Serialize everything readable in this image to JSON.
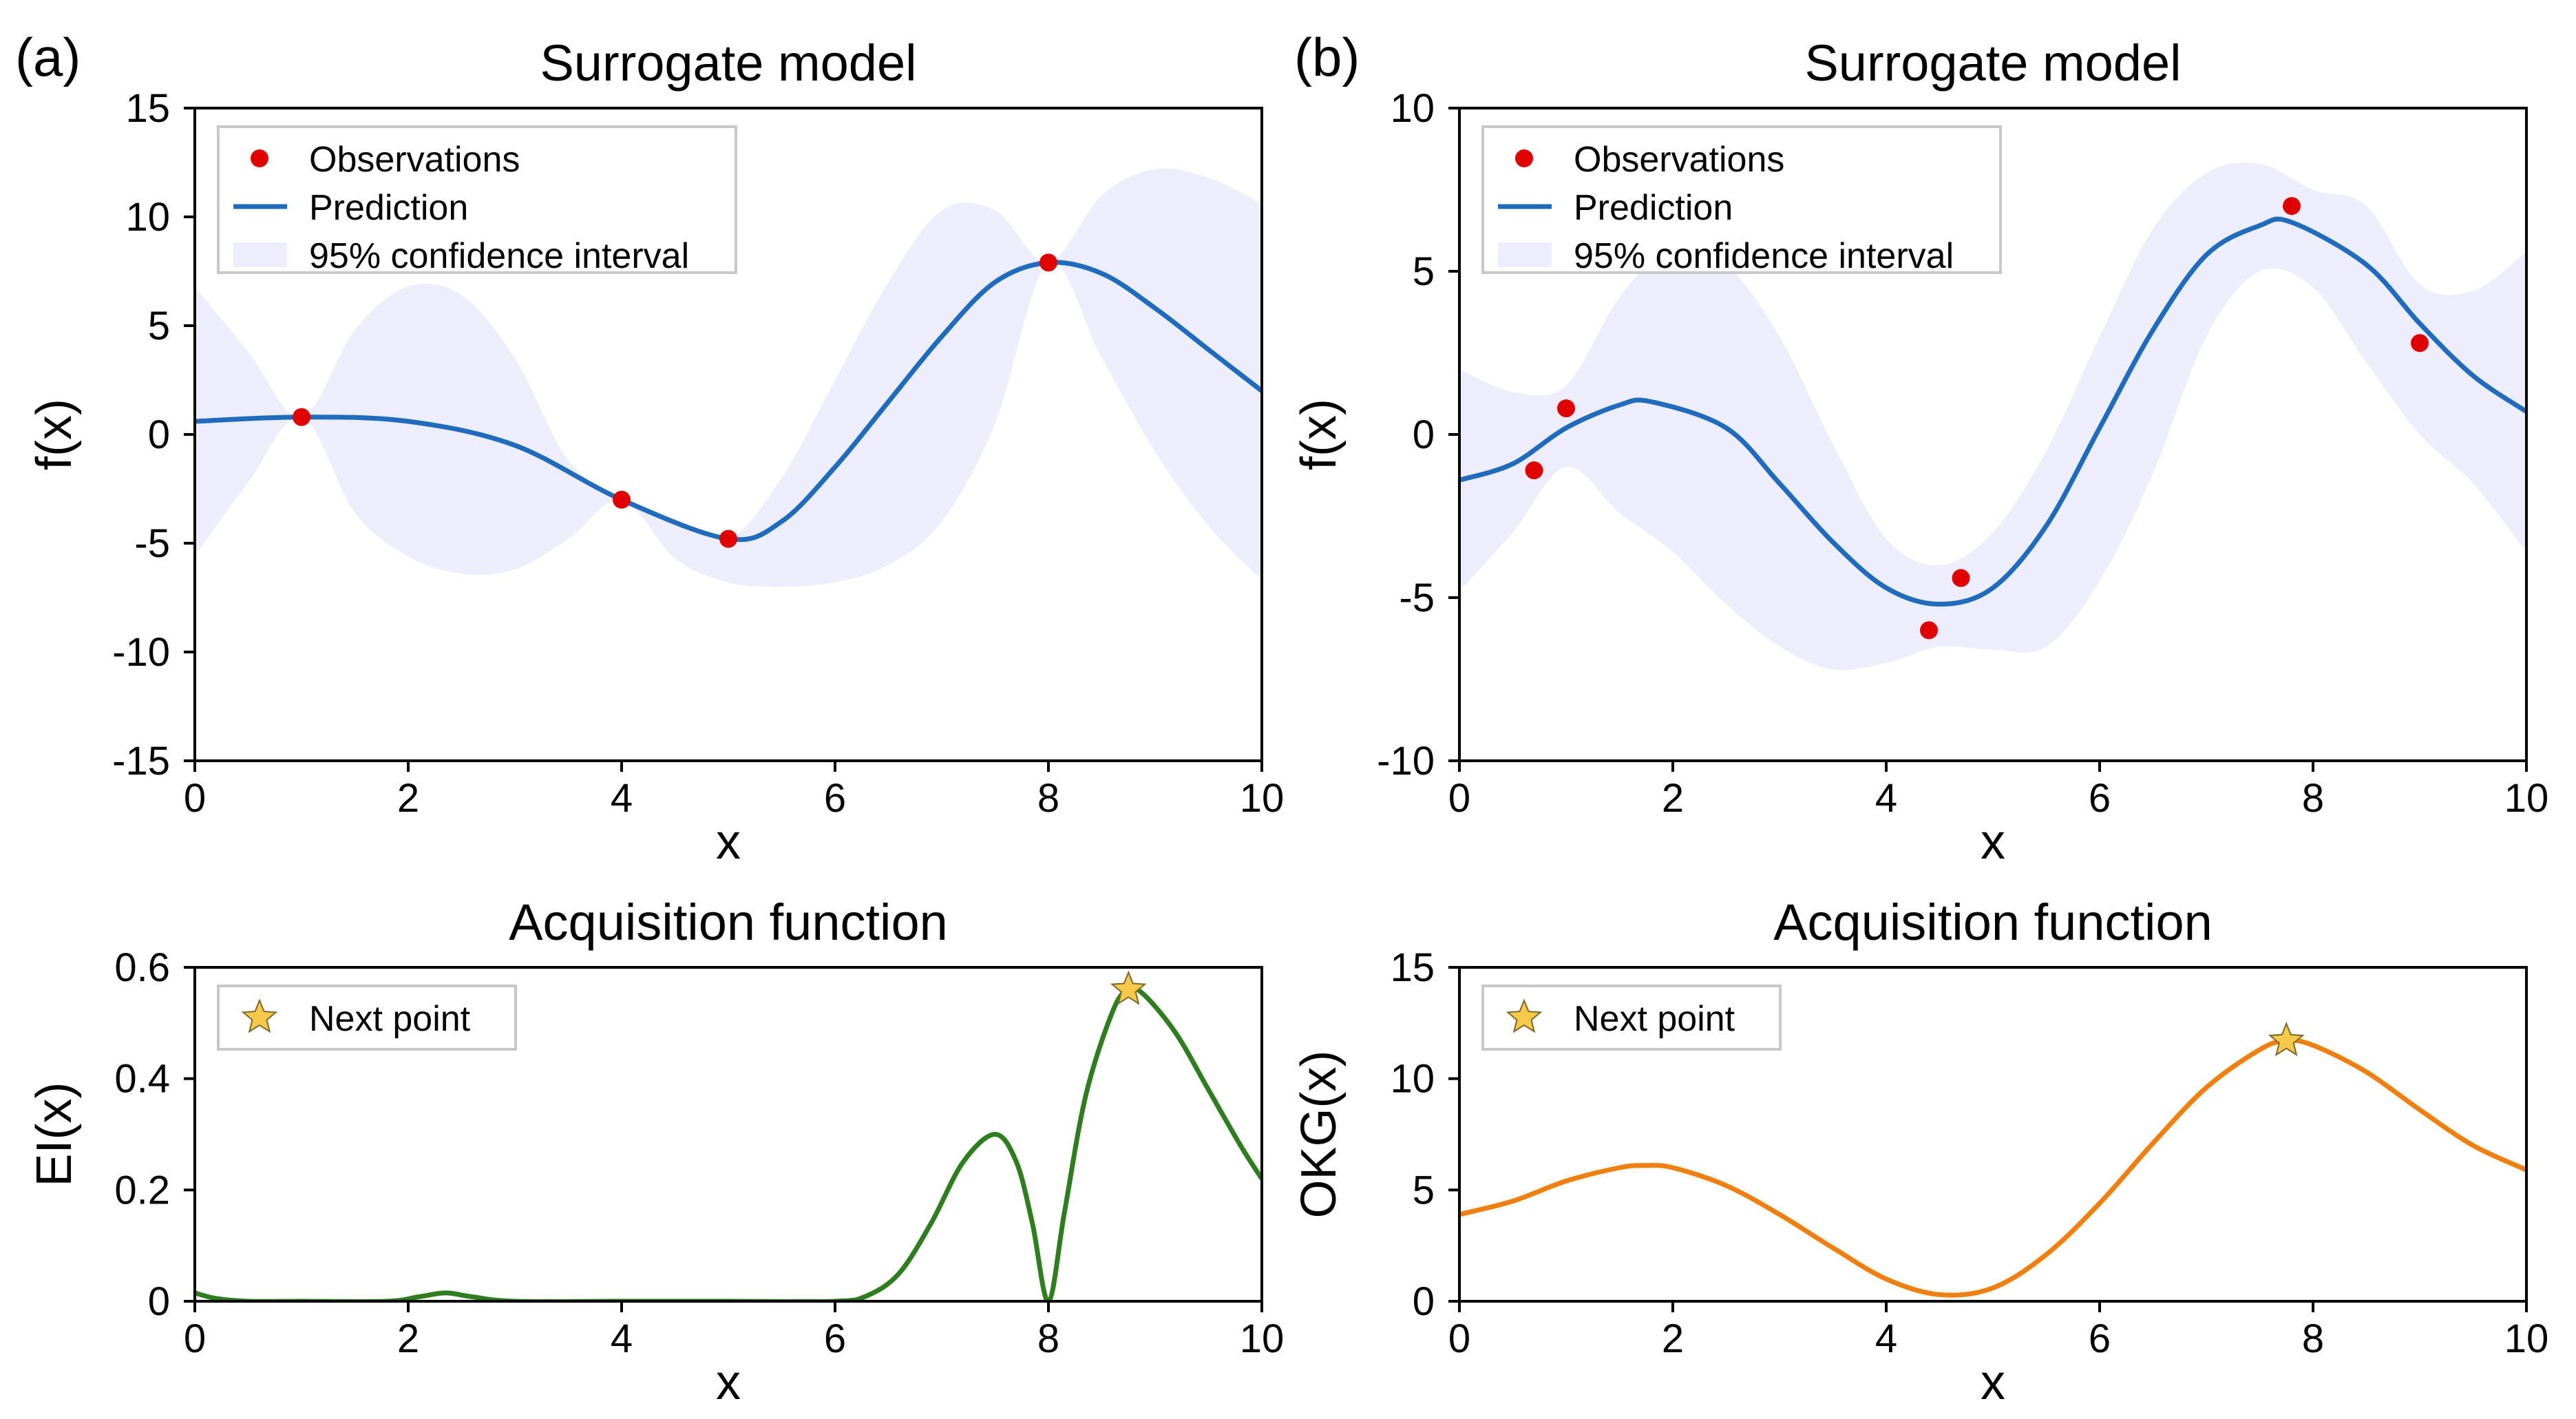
{
  "chart_data": [
    {
      "panel_label": "(a)",
      "type": "line",
      "title": "Surrogate model",
      "xlabel": "x",
      "ylabel": "f(x)",
      "xlim": [
        0,
        10
      ],
      "ylim": [
        -15,
        15
      ],
      "xticks": [
        0,
        2,
        4,
        6,
        8,
        10
      ],
      "yticks": [
        -15,
        -10,
        -5,
        0,
        5,
        10,
        15
      ],
      "legend": {
        "position": "top-left",
        "entries": [
          "Observations",
          "Prediction",
          "95% confidence interval"
        ]
      },
      "observations": {
        "name": "Observations",
        "x": [
          1,
          4,
          5,
          8
        ],
        "y": [
          0.8,
          -3.0,
          -4.8,
          7.9
        ]
      },
      "prediction": {
        "name": "Prediction",
        "x": [
          0,
          1,
          2,
          3,
          4,
          5,
          5.5,
          6,
          6.5,
          7,
          7.5,
          8,
          8.5,
          9,
          9.5,
          10
        ],
        "y": [
          0.6,
          0.8,
          0.6,
          -0.5,
          -3.0,
          -4.8,
          -4.0,
          -1.5,
          1.5,
          4.5,
          7.0,
          7.9,
          7.4,
          5.8,
          3.9,
          2.0
        ]
      },
      "confidence_interval": {
        "name": "95% confidence interval",
        "x": [
          0,
          0.5,
          1,
          1.5,
          2,
          2.5,
          3,
          3.5,
          4,
          4.5,
          5,
          5.5,
          6,
          6.5,
          7,
          7.5,
          8,
          8.5,
          9,
          9.5,
          10
        ],
        "upper": [
          6.8,
          3.8,
          0.8,
          4.8,
          6.8,
          6.4,
          3.5,
          -1.2,
          -3.0,
          -3.9,
          -4.8,
          -2.0,
          2.5,
          7.0,
          10.3,
          10.3,
          7.9,
          11.0,
          12.2,
          11.8,
          10.6
        ],
        "lower": [
          -5.6,
          -2.2,
          0.8,
          -3.6,
          -5.6,
          -6.4,
          -6.2,
          -4.8,
          -3.0,
          -5.7,
          -6.8,
          -7.0,
          -6.8,
          -6.0,
          -4.0,
          0.5,
          7.9,
          3.5,
          -0.8,
          -4.2,
          -6.7
        ]
      }
    },
    {
      "panel_label": "(b)",
      "type": "line",
      "title": "Surrogate model",
      "xlabel": "x",
      "ylabel": "f(x)",
      "xlim": [
        0,
        10
      ],
      "ylim": [
        -10,
        10
      ],
      "xticks": [
        0,
        2,
        4,
        6,
        8,
        10
      ],
      "yticks": [
        -10,
        -5,
        0,
        5,
        10
      ],
      "legend": {
        "position": "top-left",
        "entries": [
          "Observations",
          "Prediction",
          "95% confidence interval"
        ]
      },
      "observations": {
        "name": "Observations",
        "x": [
          0.7,
          1.0,
          4.4,
          4.7,
          7.8,
          9.0
        ],
        "y": [
          -1.1,
          0.8,
          -6.0,
          -4.4,
          7.0,
          2.8
        ]
      },
      "prediction": {
        "name": "Prediction",
        "x": [
          0,
          0.5,
          1,
          1.5,
          1.8,
          2.5,
          3,
          3.5,
          4,
          4.5,
          5,
          5.5,
          6,
          6.5,
          7,
          7.5,
          7.8,
          8.5,
          9,
          9.5,
          10
        ],
        "y": [
          -1.4,
          -0.9,
          0.2,
          0.9,
          1.0,
          0.2,
          -1.5,
          -3.3,
          -4.7,
          -5.2,
          -4.7,
          -2.8,
          0.2,
          3.2,
          5.5,
          6.4,
          6.5,
          5.2,
          3.4,
          1.8,
          0.7
        ]
      },
      "confidence_interval": {
        "name": "95% confidence interval",
        "x": [
          0,
          0.5,
          1,
          1.5,
          2,
          2.5,
          3,
          3.5,
          4,
          4.5,
          5,
          5.5,
          6,
          6.5,
          7,
          7.5,
          8,
          8.5,
          9,
          9.5,
          10
        ],
        "upper": [
          2.0,
          1.3,
          1.5,
          4.2,
          5.8,
          5.2,
          3.0,
          -0.3,
          -3.2,
          -4.0,
          -3.0,
          -0.5,
          3.0,
          6.3,
          8.0,
          8.3,
          7.5,
          7.0,
          4.6,
          4.4,
          5.6
        ],
        "lower": [
          -4.8,
          -3.0,
          -1.0,
          -2.4,
          -3.6,
          -5.2,
          -6.5,
          -7.2,
          -7.0,
          -6.5,
          -6.6,
          -6.5,
          -4.5,
          -1.2,
          3.0,
          5.0,
          4.5,
          2.2,
          0.0,
          -1.5,
          -3.6
        ]
      }
    },
    {
      "panel_label": "",
      "type": "line",
      "title": "Acquisition function",
      "xlabel": "x",
      "ylabel": "EI(x)",
      "xlim": [
        0,
        10
      ],
      "ylim": [
        0,
        0.6
      ],
      "xticks": [
        0,
        2,
        4,
        6,
        8,
        10
      ],
      "yticks": [
        0,
        0.2,
        0.4,
        0.6
      ],
      "legend": {
        "position": "top-left",
        "entries": [
          "Next point"
        ]
      },
      "series": [
        {
          "name": "EI(x)",
          "color": "#2e7d1f",
          "x": [
            0,
            0.2,
            0.5,
            1,
            1.8,
            2.1,
            2.35,
            2.6,
            3,
            4,
            5,
            6,
            6.3,
            6.6,
            6.9,
            7.2,
            7.5,
            7.7,
            7.85,
            8,
            8.15,
            8.35,
            8.6,
            8.75,
            8.9,
            9.2,
            9.5,
            9.8,
            10
          ],
          "y": [
            0.015,
            0.005,
            0,
            0,
            0,
            0.008,
            0.015,
            0.008,
            0,
            0,
            0,
            0,
            0.01,
            0.05,
            0.14,
            0.25,
            0.3,
            0.25,
            0.14,
            0,
            0.16,
            0.37,
            0.52,
            0.56,
            0.55,
            0.48,
            0.38,
            0.28,
            0.22
          ]
        }
      ],
      "next_point": {
        "name": "Next point",
        "x": 8.75,
        "y": 0.56
      }
    },
    {
      "panel_label": "",
      "type": "line",
      "title": "Acquisition function",
      "xlabel": "x",
      "ylabel": "OKG(x)",
      "xlim": [
        0,
        10
      ],
      "ylim": [
        0,
        15
      ],
      "xticks": [
        0,
        2,
        4,
        6,
        8,
        10
      ],
      "yticks": [
        0,
        5,
        10,
        15
      ],
      "legend": {
        "position": "top-left",
        "entries": [
          "Next point"
        ]
      },
      "series": [
        {
          "name": "OKG(x)",
          "color": "#f07f0e",
          "x": [
            0,
            0.5,
            1,
            1.5,
            1.75,
            2,
            2.5,
            3,
            3.5,
            4,
            4.5,
            5,
            5.5,
            6,
            6.5,
            7,
            7.5,
            7.75,
            8,
            8.5,
            9,
            9.5,
            10
          ],
          "y": [
            3.9,
            4.5,
            5.4,
            6.0,
            6.1,
            6.0,
            5.2,
            3.9,
            2.4,
            1.0,
            0.3,
            0.6,
            2.1,
            4.4,
            7.1,
            9.6,
            11.3,
            11.7,
            11.5,
            10.3,
            8.6,
            7.0,
            5.9
          ]
        }
      ],
      "next_point": {
        "name": "Next point",
        "x": 7.75,
        "y": 11.7
      }
    }
  ],
  "colors": {
    "observation": "#e00000",
    "prediction": "#1f6cbf",
    "confidence": "#ededfb",
    "star_fill": "#f7c94b",
    "star_stroke": "#7a6a2a",
    "legend_border": "#c8c8c8"
  }
}
